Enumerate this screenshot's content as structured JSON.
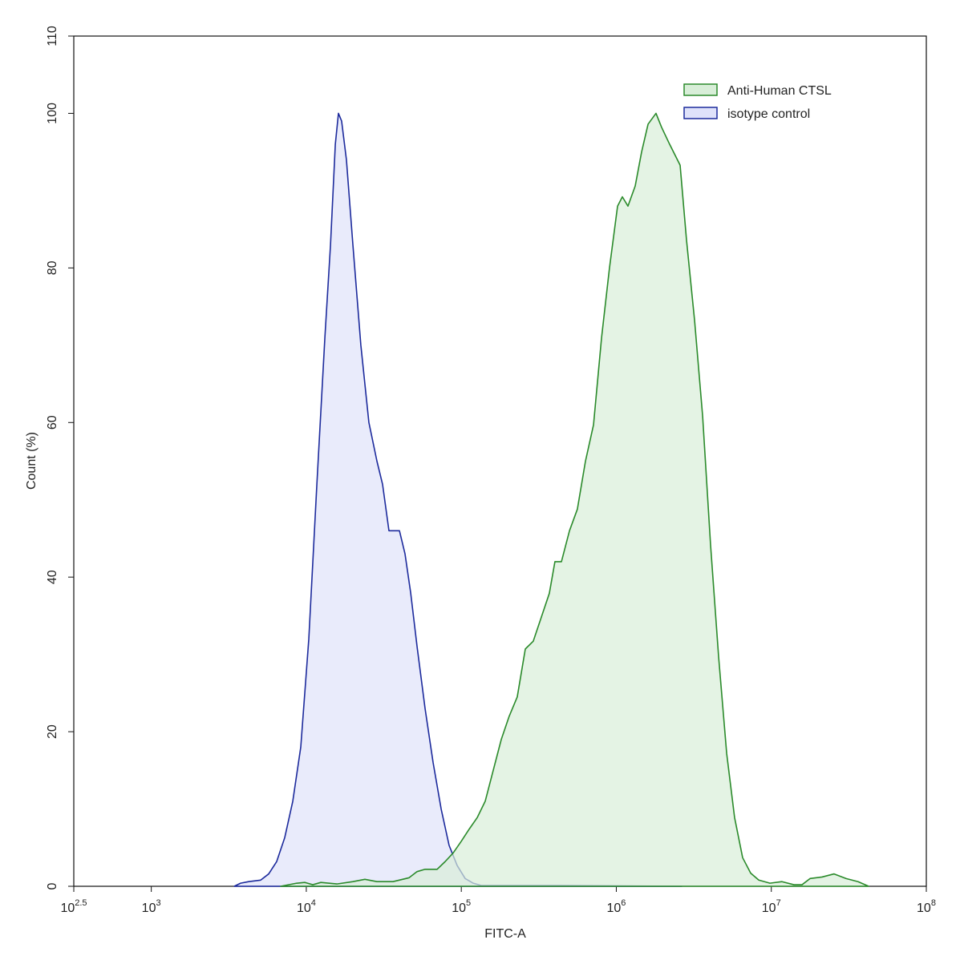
{
  "chart_data": {
    "type": "histogram-overlay",
    "x_label": "FITC-A",
    "y_label": "Count  (%)",
    "xscale": "log",
    "xlim": [
      316.2,
      100000000
    ],
    "xticks": [
      {
        "value": 316.2,
        "label": "10^2.5"
      },
      {
        "value": 1000,
        "label": "10^3"
      },
      {
        "value": 10000,
        "label": "10^4"
      },
      {
        "value": 100000,
        "label": "10^5"
      },
      {
        "value": 1000000,
        "label": "10^6"
      },
      {
        "value": 10000000,
        "label": "10^7"
      },
      {
        "value": 100000000,
        "label": "10^8"
      }
    ],
    "ylim": [
      0,
      110
    ],
    "yticks": [
      0,
      20,
      40,
      60,
      80,
      100,
      110
    ],
    "legend": "upper right",
    "series": [
      {
        "name": "Anti-Human CTSL",
        "color": "#2a8a2a",
        "fill": "#d8eed8",
        "x": [
          6840,
          8670,
          9770,
          11010,
          12410,
          15740,
          19980,
          23880,
          28560,
          36250,
          46000,
          51850,
          58380,
          69830,
          78700,
          88510,
          99770,
          112500,
          126800,
          142600,
          160700,
          181100,
          203700,
          229600,
          258800,
          291100,
          328100,
          369800,
          401800,
          442600,
          498900,
          561000,
          632400,
          712800,
          803500,
          903600,
          1019000,
          1094000,
          1189000,
          1324000,
          1456000,
          1603000,
          1803000,
          1959000,
          2208000,
          2580000,
          2838000,
          3199000,
          3606000,
          4055000,
          4571000,
          5152000,
          5794000,
          6531000,
          7362000,
          8299000,
          9795000,
          11720000,
          14000000,
          15780000,
          17780000,
          21230000,
          25410000,
          30410000,
          36310000,
          42460000
        ],
        "values": [
          0,
          0.4,
          0.5,
          0.2,
          0.5,
          0.3,
          0.6,
          0.9,
          0.6,
          0.6,
          1.1,
          1.9,
          2.2,
          2.2,
          3.2,
          4.3,
          5.8,
          7.4,
          8.9,
          11,
          15,
          19,
          22,
          24.5,
          30.7,
          31.7,
          34.8,
          37.9,
          42,
          42,
          46,
          48.8,
          55,
          59.7,
          71,
          80,
          88,
          89.2,
          88,
          90.6,
          95,
          98.6,
          100,
          98.2,
          96,
          93.3,
          83.6,
          73.2,
          60.8,
          44.2,
          29.7,
          17.2,
          8.9,
          3.7,
          1.7,
          0.8,
          0.4,
          0.6,
          0.2,
          0.2,
          1,
          1.2,
          1.6,
          1,
          0.6,
          0
        ]
      },
      {
        "name": "isotype control",
        "color": "#1c2a9c",
        "fill": "#dfe2fa",
        "x": [
          3430,
          3770,
          4250,
          5080,
          5720,
          6440,
          7260,
          8180,
          9210,
          10380,
          11700,
          13180,
          14330,
          15390,
          16120,
          16900,
          18150,
          19980,
          22490,
          25340,
          28560,
          31050,
          34140,
          37130,
          39900,
          43340,
          47120,
          51850,
          58380,
          65780,
          74130,
          83400,
          93970,
          105900,
          119400,
          134300,
          442600,
          2640000
        ],
        "values": [
          0,
          0.4,
          0.6,
          0.8,
          1.6,
          3.2,
          6.3,
          11,
          18,
          32,
          52,
          71,
          83,
          96,
          100,
          99,
          94,
          83,
          70,
          60,
          55,
          52,
          46,
          46,
          46,
          43,
          38,
          31,
          23,
          16,
          10,
          5.3,
          2.7,
          1,
          0.4,
          0.1,
          0.1,
          0
        ]
      }
    ]
  }
}
